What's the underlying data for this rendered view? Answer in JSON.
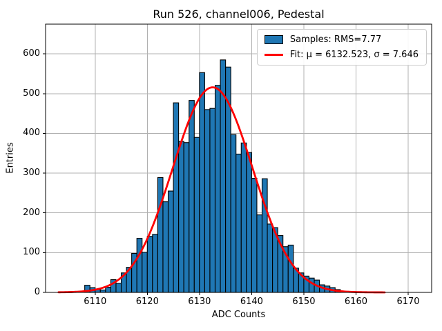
{
  "title": "Run 526, channel006, Pedestal",
  "xlabel": "ADC Counts",
  "ylabel": "Entries",
  "legend": {
    "position": "upper right",
    "items": [
      {
        "swatch": "blue-patch",
        "label": "Samples: RMS=7.77"
      },
      {
        "swatch": "red-line",
        "label": "Fit: μ = 6132.523, σ = 7.646"
      }
    ]
  },
  "chart_data": {
    "type": "bar",
    "subtype": "histogram",
    "title": "Run 526, channel006, Pedestal",
    "xlabel": "ADC Counts",
    "ylabel": "Entries",
    "bin_start": 6108,
    "bin_width": 1,
    "counts": [
      18,
      12,
      7,
      6,
      13,
      32,
      23,
      49,
      63,
      98,
      136,
      101,
      141,
      146,
      289,
      228,
      255,
      477,
      380,
      377,
      483,
      390,
      553,
      460,
      463,
      521,
      585,
      567,
      397,
      348,
      376,
      352,
      287,
      195,
      286,
      172,
      163,
      143,
      115,
      119,
      61,
      49,
      41,
      36,
      31,
      19,
      16,
      12,
      7
    ],
    "rms": 7.77,
    "fit": {
      "shape": "gaussian",
      "mu": 6132.523,
      "sigma": 7.646,
      "amplitude": 516,
      "x_range": [
        6103,
        6165.5
      ],
      "color": "#ff0000",
      "line_width": 2.8
    },
    "xlim": [
      6100.5,
      6174.5
    ],
    "ylim": [
      0,
      675
    ],
    "xticks": [
      6110,
      6120,
      6130,
      6140,
      6150,
      6160,
      6170
    ],
    "yticks": [
      0,
      100,
      200,
      300,
      400,
      500,
      600
    ],
    "grid": true,
    "grid_color": "#b0b0b0",
    "bar_color": "#1f77b4",
    "bar_edge_color": "#000000",
    "background": "#ffffff",
    "legend_position": "upper right"
  }
}
